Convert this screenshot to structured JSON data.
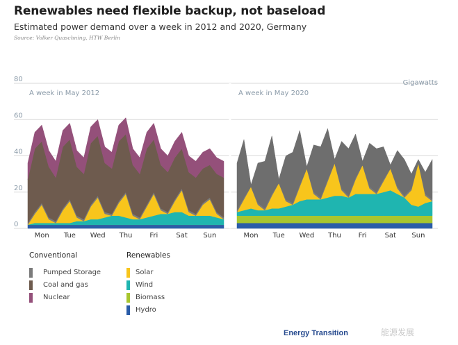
{
  "title": "Renewables need flexible backup, not baseload",
  "subtitle": "Estimated power demand over a week in 2012 and 2020, Germany",
  "source": "Source: Volker Quaschning, HTW Berlin",
  "brand": "Energy Transition",
  "watermark": "能源发展",
  "chart_data": {
    "type": "area",
    "stacked": true,
    "unit": "Gigawatts",
    "ylim": [
      0,
      80
    ],
    "yticks": [
      0,
      20,
      40,
      60,
      80
    ],
    "grid": true,
    "days": [
      "Mon",
      "Tue",
      "Wed",
      "Thu",
      "Fri",
      "Sat",
      "Sun"
    ],
    "x": [
      "Mon 00",
      "Mon 06",
      "Mon 12",
      "Mon 18",
      "Tue 00",
      "Tue 06",
      "Tue 12",
      "Tue 18",
      "Wed 00",
      "Wed 06",
      "Wed 12",
      "Wed 18",
      "Thu 00",
      "Thu 06",
      "Thu 12",
      "Thu 18",
      "Fri 00",
      "Fri 06",
      "Fri 12",
      "Fri 18",
      "Sat 00",
      "Sat 06",
      "Sat 12",
      "Sat 18",
      "Sun 00",
      "Sun 06",
      "Sun 12",
      "Sun 18",
      "Sun 24"
    ],
    "panels": [
      {
        "label": "A week in May 2012",
        "series": [
          {
            "name": "Hydro",
            "color": "#2a5ca8",
            "values": [
              2,
              2,
              2,
              2,
              2,
              2,
              2,
              2,
              2,
              2,
              2,
              2,
              2,
              2,
              2,
              2,
              2,
              2,
              2,
              2,
              2,
              2,
              2,
              2,
              2,
              2,
              2,
              2,
              2
            ]
          },
          {
            "name": "Biomass",
            "color": "#a8c62e",
            "values": [
              0,
              0,
              0,
              0,
              0,
              0,
              0,
              0,
              0,
              0,
              0,
              0,
              0,
              0,
              0,
              0,
              0,
              0,
              0,
              0,
              0,
              0,
              0,
              0,
              0,
              0,
              0,
              0,
              0
            ]
          },
          {
            "name": "Wind",
            "color": "#1fb5b0",
            "values": [
              0,
              1,
              1,
              1,
              1,
              1,
              1,
              2,
              2,
              3,
              3,
              4,
              5,
              5,
              4,
              3,
              3,
              4,
              5,
              6,
              6,
              7,
              7,
              5,
              5,
              5,
              5,
              4,
              3
            ]
          },
          {
            "name": "Solar",
            "color": "#f8c51c",
            "values": [
              0,
              5,
              10,
              2,
              0,
              7,
              12,
              2,
              0,
              7,
              12,
              2,
              0,
              7,
              13,
              2,
              0,
              6,
              12,
              2,
              0,
              6,
              12,
              2,
              0,
              6,
              9,
              2,
              0
            ]
          },
          {
            "name": "Pumped Storage",
            "color": "#7b7b7b",
            "values": [
              1,
              1,
              1,
              1,
              1,
              1,
              1,
              1,
              1,
              1,
              1,
              1,
              1,
              1,
              1,
              1,
              1,
              1,
              1,
              1,
              1,
              1,
              1,
              1,
              1,
              1,
              1,
              1,
              1
            ]
          },
          {
            "name": "Coal and gas",
            "color": "#6e5b4e",
            "values": [
              24,
              35,
              34,
              28,
              24,
              34,
              33,
              27,
              25,
              34,
              33,
              27,
              25,
              33,
              32,
              27,
              24,
              31,
              29,
              24,
              22,
              23,
              22,
              21,
              20,
              19,
              18,
              21,
              22
            ]
          },
          {
            "name": "Nuclear",
            "color": "#94507a",
            "values": [
              9,
              9,
              9,
              9,
              9,
              9,
              9,
              9,
              9,
              9,
              9,
              9,
              9,
              9,
              9,
              9,
              9,
              9,
              9,
              9,
              9,
              9,
              9,
              9,
              9,
              9,
              9,
              9,
              9
            ]
          }
        ]
      },
      {
        "label": "A week in May 2020",
        "series": [
          {
            "name": "Hydro",
            "color": "#2a5ca8",
            "values": [
              3,
              3,
              3,
              3,
              3,
              3,
              3,
              3,
              3,
              3,
              3,
              3,
              3,
              3,
              3,
              3,
              3,
              3,
              3,
              3,
              3,
              3,
              3,
              3,
              3,
              3,
              3,
              3,
              3
            ]
          },
          {
            "name": "Biomass",
            "color": "#a8c62e",
            "values": [
              4,
              4,
              4,
              4,
              4,
              4,
              4,
              4,
              4,
              4,
              4,
              4,
              4,
              4,
              4,
              4,
              4,
              4,
              4,
              4,
              4,
              4,
              4,
              4,
              4,
              4,
              4,
              4,
              4
            ]
          },
          {
            "name": "Wind",
            "color": "#1fb5b0",
            "values": [
              2,
              3,
              4,
              3,
              3,
              4,
              4,
              5,
              6,
              8,
              9,
              9,
              9,
              10,
              11,
              11,
              10,
              12,
              12,
              12,
              12,
              13,
              14,
              12,
              10,
              6,
              5,
              7,
              8
            ]
          },
          {
            "name": "Solar",
            "color": "#f8c51c",
            "values": [
              0,
              6,
              12,
              3,
              0,
              7,
              14,
              3,
              0,
              8,
              17,
              3,
              0,
              9,
              18,
              3,
              0,
              8,
              16,
              3,
              0,
              6,
              12,
              3,
              0,
              8,
              24,
              4,
              0
            ]
          },
          {
            "name": "Pumped Storage",
            "color": "#7b7b7b",
            "values": [
              1,
              1,
              0,
              1,
              1,
              1,
              0,
              1,
              1,
              1,
              0,
              1,
              1,
              1,
              0,
              1,
              1,
              1,
              0,
              1,
              1,
              1,
              0,
              1,
              1,
              1,
              0,
              1,
              1
            ]
          },
          {
            "name": "Conventional",
            "color": "#6e6e6e",
            "values": [
              26,
              32,
              1,
              22,
              26,
              32,
              2,
              24,
              28,
              30,
              1,
              26,
              28,
              28,
              2,
              26,
              26,
              24,
              2,
              24,
              24,
              18,
              2,
              20,
              20,
              8,
              2,
              12,
              22
            ]
          }
        ]
      }
    ],
    "legend": {
      "conventional_title": "Conventional",
      "conventional": [
        {
          "name": "Pumped Storage",
          "color": "#7b7b7b"
        },
        {
          "name": "Coal and gas",
          "color": "#6e5b4e"
        },
        {
          "name": "Nuclear",
          "color": "#94507a"
        }
      ],
      "renewables_title": "Renewables",
      "renewables": [
        {
          "name": "Solar",
          "color": "#f8c51c"
        },
        {
          "name": "Wind",
          "color": "#1fb5b0"
        },
        {
          "name": "Biomass",
          "color": "#a8c62e"
        },
        {
          "name": "Hydro",
          "color": "#2a5ca8"
        }
      ]
    }
  }
}
